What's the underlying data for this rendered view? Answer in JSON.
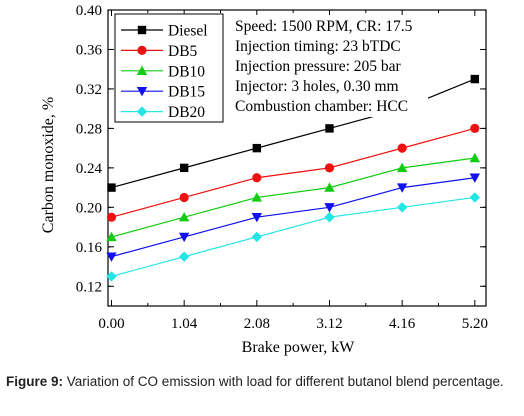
{
  "chart_data": {
    "type": "line",
    "xlabel": "Brake power, kW",
    "ylabel": "Carbon monoxide, %",
    "x": [
      0.0,
      1.04,
      2.08,
      3.12,
      4.16,
      5.2
    ],
    "x_tick_labels": [
      "0.00",
      "1.04",
      "2.08",
      "3.12",
      "4.16",
      "5.20"
    ],
    "xlim": [
      -0.05,
      5.36
    ],
    "ylim": [
      0.1,
      0.4
    ],
    "y_ticks": [
      0.12,
      0.16,
      0.2,
      0.24,
      0.28,
      0.32,
      0.36,
      0.4
    ],
    "y_tick_labels": [
      "0.12",
      "0.16",
      "0.20",
      "0.24",
      "0.28",
      "0.32",
      "0.36",
      "0.40"
    ],
    "grid": false,
    "legend_position": "top-left",
    "series": [
      {
        "name": "Diesel",
        "values": [
          0.22,
          0.24,
          0.26,
          0.28,
          0.3,
          0.33
        ],
        "color": "#000000",
        "marker": "square"
      },
      {
        "name": "DB5",
        "values": [
          0.19,
          0.21,
          0.23,
          0.24,
          0.26,
          0.28
        ],
        "color": "#ee1111",
        "marker": "circle"
      },
      {
        "name": "DB10",
        "values": [
          0.17,
          0.19,
          0.21,
          0.22,
          0.24,
          0.25
        ],
        "color": "#11cc11",
        "marker": "triangle-up"
      },
      {
        "name": "DB15",
        "values": [
          0.15,
          0.17,
          0.19,
          0.2,
          0.22,
          0.23
        ],
        "color": "#1111ee",
        "marker": "triangle-down"
      },
      {
        "name": "DB20",
        "values": [
          0.13,
          0.15,
          0.17,
          0.19,
          0.2,
          0.21
        ],
        "color": "#22e5e5",
        "marker": "diamond"
      }
    ],
    "annotations": [
      "Speed: 1500 RPM, CR: 17.5",
      "Injection timing: 23 bTDC",
      "Injection pressure: 205 bar",
      "Injector: 3 holes, 0.30 mm",
      "Combustion chamber: HCC"
    ]
  },
  "caption": {
    "label": "Figure 9:",
    "text": " Variation of CO emission with load for different butanol blend percentage."
  }
}
